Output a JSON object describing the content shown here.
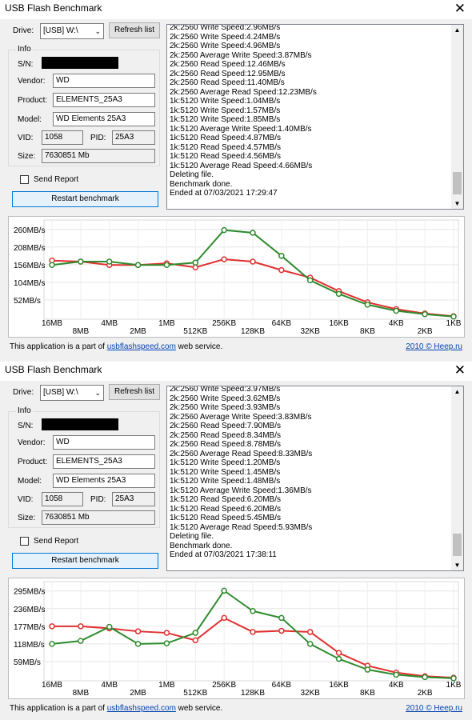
{
  "windows": [
    {
      "title": "USB Flash Benchmark",
      "drive_label": "Drive:",
      "drive_value": "[USB] W:\\",
      "refresh_label": "Refresh list",
      "info_caption": "Info",
      "sn_label": "S/N:",
      "vendor_label": "Vendor:",
      "vendor_value": "WD",
      "product_label": "Product:",
      "product_value": "ELEMENTS_25A3",
      "model_label": "Model:",
      "model_value": "WD Elements 25A3",
      "vid_label": "VID:",
      "vid_value": "1058",
      "pid_label": "PID:",
      "pid_value": "25A3",
      "size_label": "Size:",
      "size_value": "7630851 Mb",
      "send_report_label": "Send Report",
      "restart_label": "Restart benchmark",
      "log_lines": [
        "2k:2560 Write Speed:2.96MB/s",
        "2k:2560 Write Speed:4.24MB/s",
        "2k:2560 Write Speed:4.96MB/s",
        "2k:2560 Average Write Speed:3.87MB/s",
        "2k:2560 Read Speed:12.46MB/s",
        "2k:2560 Read Speed:12.95MB/s",
        "2k:2560 Read Speed:11.40MB/s",
        "2k:2560 Average Read Speed:12.23MB/s",
        "1k:5120 Write Speed:1.04MB/s",
        "1k:5120 Write Speed:1.57MB/s",
        "1k:5120 Write Speed:1.85MB/s",
        "1k:5120 Average Write Speed:1.40MB/s",
        "1k:5120 Read Speed:4.87MB/s",
        "1k:5120 Read Speed:4.57MB/s",
        "1k:5120 Read Speed:4.56MB/s",
        "1k:5120 Average Read Speed:4.66MB/s",
        "Deleting file.",
        "Benchmark done.",
        "Ended at 07/03/2021 17:29:47"
      ],
      "footer_text": "This application is a part of ",
      "footer_link": "usbflashspeed.com",
      "footer_suffix": " web service.",
      "footer_right": "2010 © Heep.ru",
      "chart_data": {
        "type": "line",
        "categories": [
          "16MB",
          "8MB",
          "4MB",
          "2MB",
          "1MB",
          "512KB",
          "256KB",
          "128KB",
          "64KB",
          "32KB",
          "16KB",
          "8KB",
          "4KB",
          "2KB",
          "1KB"
        ],
        "ytick_labels": [
          "260MB/s",
          "208MB/s",
          "156MB/s",
          "104MB/s",
          "52MB/s"
        ],
        "ytick_values": [
          260,
          208,
          156,
          104,
          52
        ],
        "ylim": [
          0,
          283
        ],
        "series": [
          {
            "color": "#e03030",
            "values": [
              168,
              165,
              155,
              155,
              160,
              148,
              172,
              165,
              140,
              118,
              78,
              45,
              25,
              12,
              4
            ]
          },
          {
            "color": "#2e8b2e",
            "values": [
              155,
              165,
              165,
              155,
              155,
              162,
              258,
              250,
              182,
              110,
              70,
              38,
              20,
              10,
              3
            ]
          }
        ]
      }
    },
    {
      "title": "USB Flash Benchmark",
      "drive_label": "Drive:",
      "drive_value": "[USB] W:\\",
      "refresh_label": "Refresh list",
      "info_caption": "Info",
      "sn_label": "S/N:",
      "vendor_label": "Vendor:",
      "vendor_value": "WD",
      "product_label": "Product:",
      "product_value": "ELEMENTS_25A3",
      "model_label": "Model:",
      "model_value": "WD Elements 25A3",
      "vid_label": "VID:",
      "vid_value": "1058",
      "pid_label": "PID:",
      "pid_value": "25A3",
      "size_label": "Size:",
      "size_value": "7630851 Mb",
      "send_report_label": "Send Report",
      "restart_label": "Restart benchmark",
      "log_lines": [
        "2k:2560 Write Speed:3.97MB/s",
        "2k:2560 Write Speed:3.62MB/s",
        "2k:2560 Write Speed:3.93MB/s",
        "2k:2560 Average Write Speed:3.83MB/s",
        "2k:2560 Read Speed:7.90MB/s",
        "2k:2560 Read Speed:8.34MB/s",
        "2k:2560 Read Speed:8.78MB/s",
        "2k:2560 Average Read Speed:8.33MB/s",
        "1k:5120 Write Speed:1.20MB/s",
        "1k:5120 Write Speed:1.45MB/s",
        "1k:5120 Write Speed:1.48MB/s",
        "1k:5120 Average Write Speed:1.36MB/s",
        "1k:5120 Read Speed:6.20MB/s",
        "1k:5120 Read Speed:6.20MB/s",
        "1k:5120 Read Speed:5.45MB/s",
        "1k:5120 Average Read Speed:5.93MB/s",
        "Deleting file.",
        "Benchmark done.",
        "Ended at 07/03/2021 17:38:11"
      ],
      "footer_text": "This application is a part of ",
      "footer_link": "usbflashspeed.com",
      "footer_suffix": " web service.",
      "footer_right": "2010 © Heep.ru",
      "chart_data": {
        "type": "line",
        "categories": [
          "16MB",
          "8MB",
          "4MB",
          "2MB",
          "1MB",
          "512KB",
          "256KB",
          "128KB",
          "64KB",
          "32KB",
          "16KB",
          "8KB",
          "4KB",
          "2KB",
          "1KB"
        ],
        "ytick_labels": [
          "295MB/s",
          "236MB/s",
          "177MB/s",
          "118MB/s",
          "59MB/s"
        ],
        "ytick_values": [
          295,
          236,
          177,
          118,
          59
        ],
        "ylim": [
          0,
          321
        ],
        "series": [
          {
            "color": "#e03030",
            "values": [
              177,
              177,
              170,
              160,
              155,
              130,
              205,
              158,
              162,
              158,
              88,
              45,
              22,
              10,
              5
            ]
          },
          {
            "color": "#2e8b2e",
            "values": [
              118,
              128,
              175,
              118,
              120,
              155,
              296,
              228,
              205,
              118,
              68,
              32,
              15,
              7,
              3
            ]
          }
        ]
      }
    }
  ]
}
